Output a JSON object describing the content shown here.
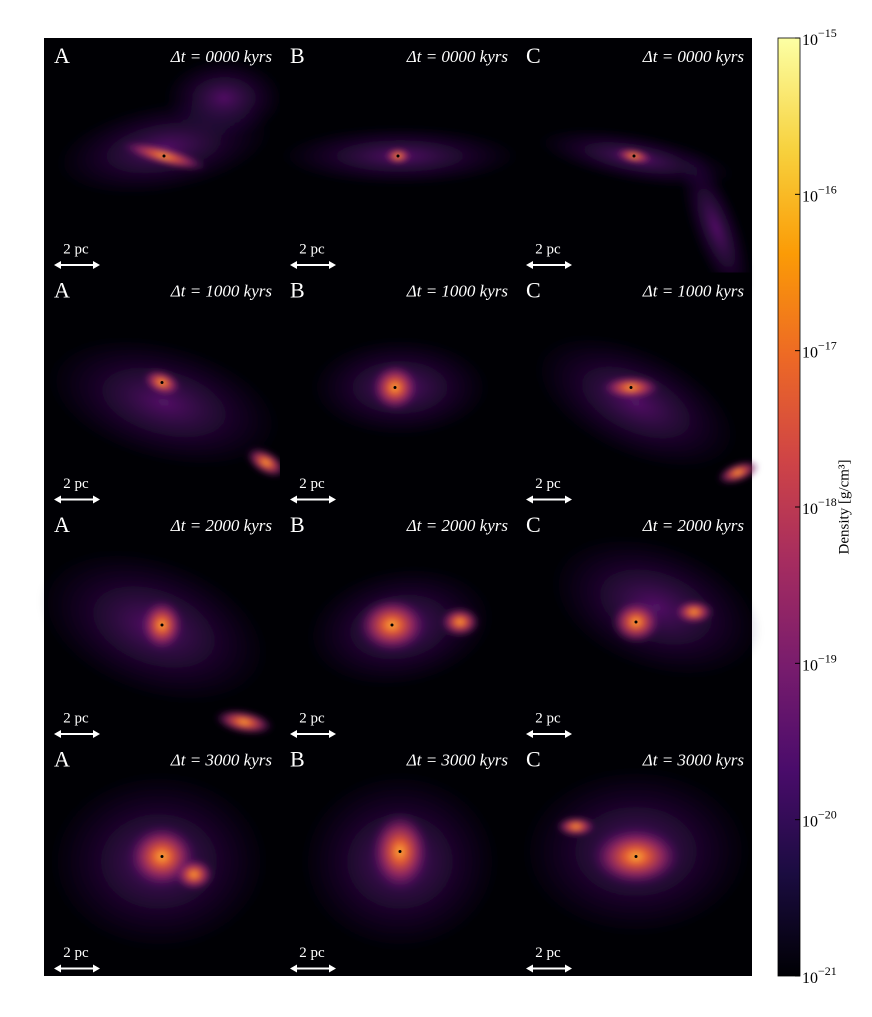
{
  "panels": [
    {
      "label": "A",
      "time": "Δt = 0000 kyrs",
      "scale": "2 pc"
    },
    {
      "label": "B",
      "time": "Δt = 0000 kyrs",
      "scale": "2 pc"
    },
    {
      "label": "C",
      "time": "Δt = 0000 kyrs",
      "scale": "2 pc"
    },
    {
      "label": "A",
      "time": "Δt = 1000 kyrs",
      "scale": "2 pc"
    },
    {
      "label": "B",
      "time": "Δt = 1000 kyrs",
      "scale": "2 pc"
    },
    {
      "label": "C",
      "time": "Δt = 1000 kyrs",
      "scale": "2 pc"
    },
    {
      "label": "A",
      "time": "Δt = 2000 kyrs",
      "scale": "2 pc"
    },
    {
      "label": "B",
      "time": "Δt = 2000 kyrs",
      "scale": "2 pc"
    },
    {
      "label": "C",
      "time": "Δt = 2000 kyrs",
      "scale": "2 pc"
    },
    {
      "label": "A",
      "time": "Δt = 3000 kyrs",
      "scale": "2 pc"
    },
    {
      "label": "B",
      "time": "Δt = 3000 kyrs",
      "scale": "2 pc"
    },
    {
      "label": "C",
      "time": "Δt = 3000 kyrs",
      "scale": "2 pc"
    }
  ],
  "colorbar": {
    "label": "Density [g/cm³]",
    "scale": "log",
    "lim": [
      1e-21,
      1e-15
    ],
    "ticks": [
      {
        "value": 1e-15,
        "label": {
          "base": "10",
          "exponent": "−15"
        }
      },
      {
        "value": 1e-16,
        "label": {
          "base": "10",
          "exponent": "−16"
        }
      },
      {
        "value": 1e-17,
        "label": {
          "base": "10",
          "exponent": "−17"
        }
      },
      {
        "value": 1e-18,
        "label": {
          "base": "10",
          "exponent": "−18"
        }
      },
      {
        "value": 1e-19,
        "label": {
          "base": "10",
          "exponent": "−19"
        }
      },
      {
        "value": 1e-20,
        "label": {
          "base": "10",
          "exponent": "−20"
        }
      },
      {
        "value": 1e-21,
        "label": {
          "base": "10",
          "exponent": "−21"
        }
      }
    ]
  }
}
